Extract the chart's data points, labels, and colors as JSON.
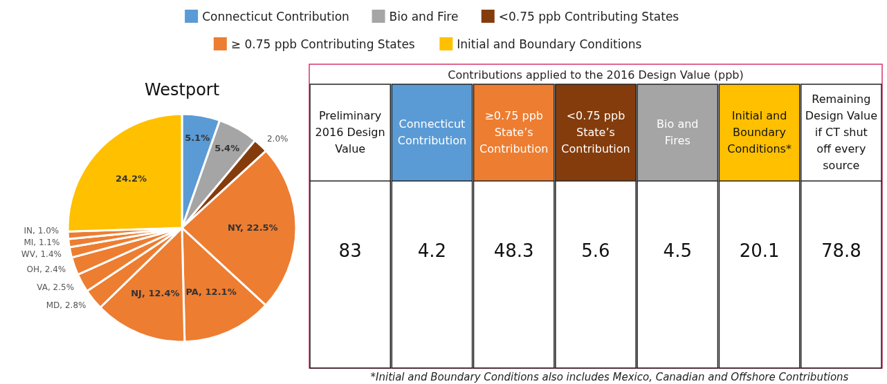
{
  "chart_data": [
    {
      "type": "pie",
      "title": "Westport",
      "legend": "top",
      "categories": [
        "Connecticut Contribution",
        "Bio and Fire",
        "<0.75 ppb Contributing States",
        "NY",
        "PA",
        "NJ",
        "MD",
        "VA",
        "OH",
        "WV",
        "MI",
        "IN",
        "Initial and Boundary Conditions"
      ],
      "annotations": [
        "≥ 0.75 ppb Contributing States"
      ],
      "values": [
        5.1,
        5.4,
        2.0,
        22.5,
        12.1,
        12.4,
        2.8,
        2.5,
        2.4,
        1.4,
        1.1,
        1.0,
        24.2
      ],
      "value_labels": [
        "5.1%",
        "5.4%",
        "2.0%",
        "22.5%",
        "12.1%",
        "12.4%",
        "2.8%",
        "2.5%",
        "2.4%",
        "1.4%",
        "1.1%",
        "1.0%",
        "24.2%"
      ],
      "colors": [
        "#5b9bd5",
        "#a5a5a5",
        "#843c0c",
        "#ed7d31",
        "#ed7d31",
        "#ed7d31",
        "#ed7d31",
        "#ed7d31",
        "#ed7d31",
        "#ed7d31",
        "#ed7d31",
        "#ed7d31",
        "#ffc000"
      ]
    },
    {
      "type": "other",
      "title": "Contributions applied to the 2016 Design Value (ppb)",
      "categories": [
        "Preliminary 2016 Design Value",
        "Connecticut Contribution",
        "≥0.75 ppb State’s Contribution",
        "<0.75 ppb State’s Contribution",
        "Bio and Fires",
        "Initial and Boundary Conditions*",
        "Remaining Design Value if CT shut off every source"
      ],
      "values": [
        83,
        4.2,
        48.3,
        5.6,
        4.5,
        20.1,
        78.8
      ],
      "colors": [
        "#ffffff",
        "#5b9bd5",
        "#ed7d31",
        "#843c0c",
        "#a5a5a5",
        "#ffc000",
        "#ffffff"
      ],
      "data_labels": true,
      "annotations": [
        "*Initial and Boundary Conditions also includes Mexico, Canadian and Offshore Contributions"
      ]
    }
  ]
}
